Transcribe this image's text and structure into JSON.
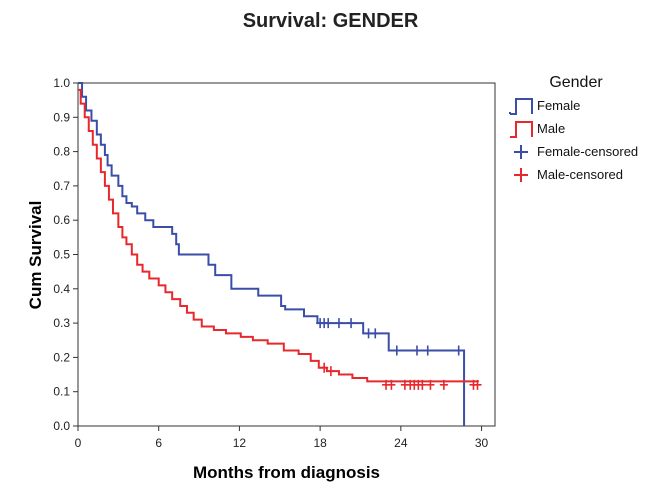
{
  "chart_data": {
    "type": "line",
    "title": "Survival: GENDER",
    "xlabel": "Months from diagnosis",
    "ylabel": "Cum Survival",
    "xlim": [
      0,
      31
    ],
    "ylim": [
      0,
      1.0
    ],
    "xticks": [
      0,
      6,
      12,
      18,
      24,
      30
    ],
    "yticks": [
      0.0,
      0.1,
      0.2,
      0.3,
      0.4,
      0.5,
      0.6,
      0.7,
      0.8,
      0.9,
      1.0
    ],
    "ytick_labels": [
      "0.0",
      "0.1",
      "0.2",
      "0.3",
      "0.4",
      "0.5",
      "0.6",
      "0.7",
      "0.8",
      "0.9",
      "1.0"
    ],
    "grid": false,
    "legend_position": "right",
    "legend_title": "Gender",
    "series": [
      {
        "name": "Female",
        "color": "#3a4ea8",
        "step_x": [
          0,
          0.3,
          0.6,
          1.0,
          1.4,
          1.7,
          2.0,
          2.2,
          2.5,
          3.0,
          3.3,
          3.6,
          4.0,
          4.4,
          5.0,
          5.6,
          6.2,
          7.0,
          7.3,
          7.5,
          9.7,
          10.2,
          11.4,
          13.4,
          15.1,
          15.4,
          16.8,
          17.8,
          21.2,
          23.1,
          28.7
        ],
        "step_y": [
          1.0,
          0.96,
          0.92,
          0.89,
          0.85,
          0.82,
          0.79,
          0.76,
          0.73,
          0.7,
          0.67,
          0.65,
          0.64,
          0.62,
          0.6,
          0.58,
          0.58,
          0.56,
          0.53,
          0.5,
          0.47,
          0.44,
          0.4,
          0.38,
          0.35,
          0.34,
          0.32,
          0.3,
          0.27,
          0.22,
          0.0
        ],
        "censored_x": [
          18.0,
          18.3,
          18.6,
          19.4,
          20.3,
          21.6,
          22.1,
          23.7,
          25.2,
          26.0,
          28.3
        ],
        "censored_y": [
          0.3,
          0.3,
          0.3,
          0.3,
          0.3,
          0.27,
          0.27,
          0.22,
          0.22,
          0.22,
          0.22
        ]
      },
      {
        "name": "Male",
        "color": "#e8282c",
        "step_x": [
          0,
          0.2,
          0.5,
          0.8,
          1.1,
          1.4,
          1.7,
          2.0,
          2.3,
          2.6,
          3.0,
          3.3,
          3.6,
          4.0,
          4.4,
          4.8,
          5.3,
          6.0,
          6.5,
          7.0,
          7.6,
          8.1,
          8.6,
          9.2,
          10.1,
          11.0,
          12.1,
          13.0,
          14.1,
          15.3,
          16.4,
          17.3,
          17.9,
          18.5,
          19.4,
          20.4,
          21.5,
          23.1
        ],
        "step_y": [
          0.98,
          0.94,
          0.9,
          0.86,
          0.82,
          0.78,
          0.74,
          0.7,
          0.66,
          0.62,
          0.58,
          0.55,
          0.53,
          0.5,
          0.47,
          0.45,
          0.43,
          0.41,
          0.39,
          0.37,
          0.35,
          0.33,
          0.31,
          0.29,
          0.28,
          0.27,
          0.26,
          0.25,
          0.24,
          0.22,
          0.21,
          0.19,
          0.17,
          0.16,
          0.15,
          0.14,
          0.13,
          0.13
        ],
        "censored_x": [
          18.3,
          18.8,
          22.9,
          23.3,
          24.3,
          24.7,
          25.0,
          25.3,
          25.6,
          26.2,
          27.2,
          29.4,
          29.7
        ],
        "censored_y": [
          0.17,
          0.16,
          0.12,
          0.12,
          0.12,
          0.12,
          0.12,
          0.12,
          0.12,
          0.12,
          0.12,
          0.12,
          0.12
        ]
      }
    ],
    "legend_entries": [
      "Female",
      "Male",
      "Female-censored",
      "Male-censored"
    ]
  }
}
